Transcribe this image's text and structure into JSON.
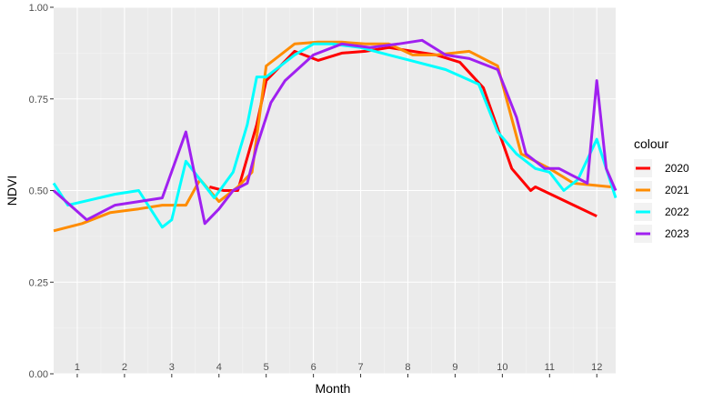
{
  "chart_data": {
    "type": "line",
    "xlabel": "Month",
    "ylabel": "NDVI",
    "xlim": [
      0.5,
      12.4
    ],
    "ylim": [
      0,
      1
    ],
    "x_ticks": [
      1,
      2,
      3,
      4,
      5,
      6,
      7,
      8,
      9,
      10,
      11,
      12
    ],
    "y_ticks": [
      0,
      0.25,
      0.5,
      0.75,
      1
    ],
    "y_tick_labels": [
      "0.00",
      "0.25",
      "0.50",
      "0.75",
      "1.00"
    ],
    "grid": true,
    "legend_title": "colour",
    "legend_position": "right",
    "series": [
      {
        "name": "2020",
        "color": "#FF0000",
        "x": [
          3.8,
          4.1,
          4.4,
          4.8,
          5.0,
          5.6,
          6.1,
          6.6,
          7.1,
          7.6,
          8.1,
          8.6,
          9.1,
          9.6,
          10.2,
          10.6,
          10.7,
          12.0
        ],
        "y": [
          0.51,
          0.5,
          0.5,
          0.68,
          0.8,
          0.88,
          0.855,
          0.875,
          0.88,
          0.89,
          0.88,
          0.87,
          0.85,
          0.78,
          0.56,
          0.5,
          0.51,
          0.43
        ]
      },
      {
        "name": "2021",
        "color": "#FF8C00",
        "x": [
          0.5,
          1.1,
          1.7,
          2.3,
          2.8,
          3.3,
          3.6,
          4.0,
          4.4,
          4.7,
          5.0,
          5.6,
          6.1,
          6.6,
          7.1,
          7.6,
          8.1,
          8.6,
          9.3,
          9.9,
          10.4,
          11.0,
          11.5,
          12.3
        ],
        "y": [
          0.39,
          0.41,
          0.44,
          0.45,
          0.46,
          0.46,
          0.53,
          0.47,
          0.51,
          0.55,
          0.84,
          0.9,
          0.905,
          0.905,
          0.9,
          0.9,
          0.87,
          0.87,
          0.88,
          0.84,
          0.6,
          0.56,
          0.52,
          0.51
        ]
      },
      {
        "name": "2022",
        "color": "#00FFFF",
        "x": [
          0.5,
          0.8,
          1.3,
          1.8,
          2.3,
          2.8,
          3.0,
          3.3,
          3.6,
          3.9,
          4.3,
          4.6,
          4.8,
          5.0,
          5.6,
          6.0,
          6.4,
          7.0,
          7.6,
          8.2,
          8.8,
          9.5,
          9.9,
          10.3,
          10.7,
          11.0,
          11.3,
          11.6,
          12.0,
          12.4
        ],
        "y": [
          0.52,
          0.46,
          0.475,
          0.49,
          0.5,
          0.4,
          0.42,
          0.58,
          0.53,
          0.48,
          0.55,
          0.68,
          0.81,
          0.81,
          0.87,
          0.9,
          0.9,
          0.89,
          0.87,
          0.85,
          0.83,
          0.79,
          0.66,
          0.6,
          0.56,
          0.55,
          0.5,
          0.53,
          0.64,
          0.48
        ]
      },
      {
        "name": "2023",
        "color": "#A020F0",
        "x": [
          0.5,
          1.2,
          1.8,
          2.3,
          2.8,
          3.3,
          3.7,
          4.0,
          4.3,
          4.6,
          4.8,
          5.1,
          5.4,
          6.0,
          6.6,
          7.2,
          7.8,
          8.3,
          8.8,
          9.3,
          9.9,
          10.3,
          10.5,
          10.9,
          11.2,
          11.5,
          11.8,
          12.0,
          12.2,
          12.4
        ],
        "y": [
          0.5,
          0.42,
          0.46,
          0.47,
          0.48,
          0.66,
          0.41,
          0.45,
          0.5,
          0.52,
          0.62,
          0.74,
          0.8,
          0.87,
          0.9,
          0.89,
          0.9,
          0.91,
          0.87,
          0.86,
          0.83,
          0.7,
          0.6,
          0.56,
          0.56,
          0.54,
          0.52,
          0.8,
          0.56,
          0.5
        ]
      }
    ]
  }
}
